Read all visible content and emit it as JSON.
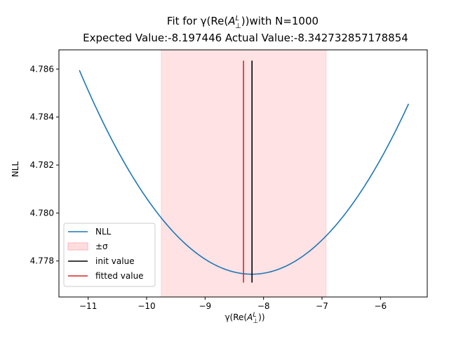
{
  "chart_data": {
    "type": "line",
    "title_line1_prefix": "Fit for γ(Re(",
    "title_line1_symbol": "A",
    "title_line1_sup": "L",
    "title_line1_sub": "⊥",
    "title_line1_suffix": "))with N=1000",
    "title_line2": "Expected Value:-8.197446 Actual Value:-8.342732857178854",
    "xlabel_prefix": "γ(Re(",
    "xlabel_symbol": "A",
    "xlabel_sup": "L",
    "xlabel_sub": "⊥",
    "xlabel_suffix": "))",
    "ylabel": "NLL",
    "xlim": [
      -11.5,
      -5.2
    ],
    "ylim": [
      4.7765,
      4.7868
    ],
    "xticks": [
      -11,
      -10,
      -9,
      -8,
      -7,
      -6
    ],
    "xtick_labels": [
      "−11",
      "−10",
      "−9",
      "−8",
      "−7",
      "−6"
    ],
    "yticks": [
      4.778,
      4.78,
      4.782,
      4.784,
      4.786
    ],
    "ytick_labels": [
      "4.778",
      "4.780",
      "4.782",
      "4.784",
      "4.786"
    ],
    "nll_curve": {
      "x_min": -11.15,
      "x_max": -5.52,
      "vertex_x": -8.2,
      "vertex_y": 4.77745,
      "left_end_y": 4.78595,
      "right_end_y": 4.78455
    },
    "sigma_band": {
      "x0": -9.75,
      "x1": -6.93
    },
    "init_value": -8.197446,
    "fitted_value": -8.342732857178854,
    "vline_y_range": [
      4.7771,
      4.78635
    ],
    "colors": {
      "nll": "#1f77b4",
      "band": "#ffb3b8",
      "init": "#000000",
      "fitted": "#d62728"
    },
    "legend": {
      "placement": "lower-left",
      "entries": [
        {
          "key": "nll",
          "label": "NLL"
        },
        {
          "key": "band",
          "label": "±σ"
        },
        {
          "key": "init",
          "label": "init value"
        },
        {
          "key": "fitted",
          "label": "fitted value"
        }
      ]
    }
  }
}
